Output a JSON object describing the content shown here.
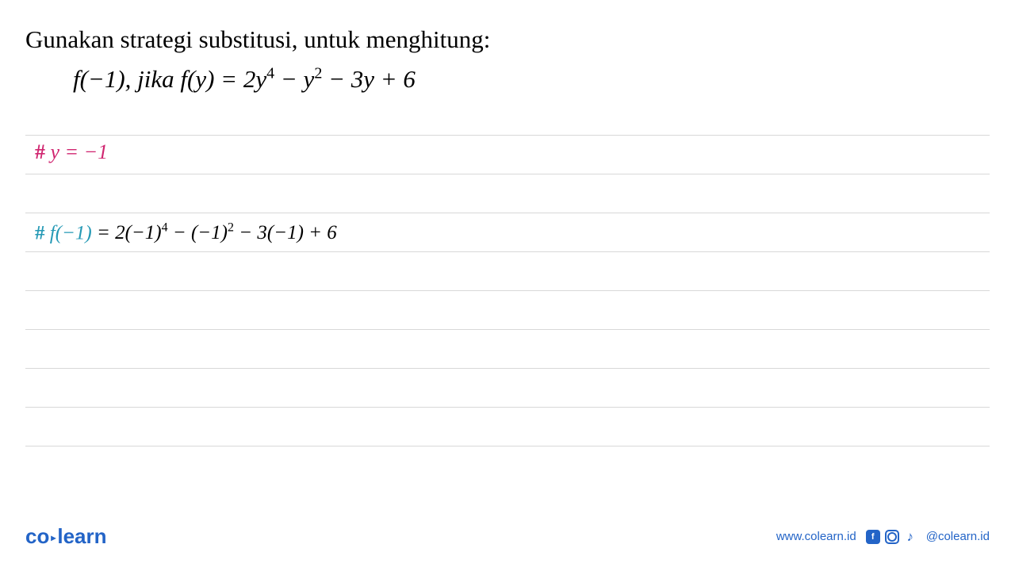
{
  "problem": {
    "title": "Gunakan strategi substitusi, untuk menghitung:",
    "equation_prefix": "f(−1), jika f(y) = 2y",
    "exp1": "4",
    "mid1": " − y",
    "exp2": "2",
    "suffix": " − 3y + 6"
  },
  "work": {
    "line1": {
      "hash": "#",
      "text": " y = −1"
    },
    "line2": {
      "hash": "#",
      "fx": " f(−1) ",
      "eq_part1": "= 2(−1)",
      "exp1": "4",
      "eq_part2": " − (−1)",
      "exp2": "2",
      "eq_part3": " − 3(−1) + 6"
    }
  },
  "colors": {
    "line1_color": "#d02670",
    "line2_color": "#2599b5",
    "text_color": "#000000",
    "rule_color": "#d8d8d8",
    "brand_color": "#2364c7",
    "background": "#ffffff"
  },
  "footer": {
    "logo_part1": "co",
    "logo_part2": "learn",
    "website": "www.colearn.id",
    "handle": "@colearn.id"
  }
}
